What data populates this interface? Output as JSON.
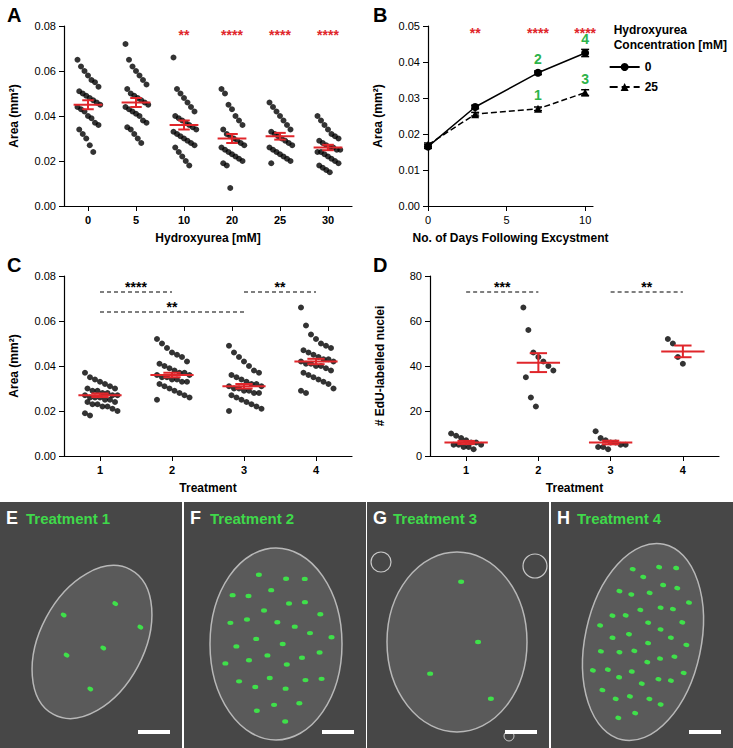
{
  "chart_data": [
    {
      "title": "A",
      "type": "dot_plot",
      "categories": [
        "0",
        "5",
        "10",
        "20",
        "25",
        "30"
      ],
      "values": [
        [
          0.065,
          0.062,
          0.06,
          0.058,
          0.056,
          0.055,
          0.053,
          0.051,
          0.05,
          0.049,
          0.048,
          0.047,
          0.046,
          0.045,
          0.044,
          0.043,
          0.042,
          0.04,
          0.039,
          0.037,
          0.036,
          0.034,
          0.032,
          0.03,
          0.027,
          0.024
        ],
        [
          0.072,
          0.065,
          0.062,
          0.06,
          0.058,
          0.056,
          0.054,
          0.052,
          0.05,
          0.049,
          0.048,
          0.047,
          0.046,
          0.045,
          0.044,
          0.043,
          0.042,
          0.041,
          0.04,
          0.038,
          0.037,
          0.035,
          0.034,
          0.032,
          0.03,
          0.028
        ],
        [
          0.066,
          0.052,
          0.05,
          0.048,
          0.046,
          0.044,
          0.042,
          0.04,
          0.039,
          0.038,
          0.037,
          0.036,
          0.035,
          0.034,
          0.033,
          0.032,
          0.031,
          0.03,
          0.029,
          0.028,
          0.027,
          0.026,
          0.024,
          0.022,
          0.02,
          0.018
        ],
        [
          0.052,
          0.05,
          0.045,
          0.043,
          0.04,
          0.038,
          0.036,
          0.034,
          0.032,
          0.031,
          0.03,
          0.029,
          0.028,
          0.027,
          0.026,
          0.025,
          0.024,
          0.023,
          0.022,
          0.021,
          0.02,
          0.019,
          0.018,
          0.008
        ],
        [
          0.046,
          0.044,
          0.042,
          0.04,
          0.038,
          0.036,
          0.034,
          0.033,
          0.032,
          0.031,
          0.03,
          0.029,
          0.028,
          0.027,
          0.026,
          0.025,
          0.024,
          0.023,
          0.022,
          0.021,
          0.02,
          0.019
        ],
        [
          0.04,
          0.038,
          0.036,
          0.034,
          0.032,
          0.031,
          0.03,
          0.029,
          0.028,
          0.027,
          0.026,
          0.026,
          0.025,
          0.025,
          0.024,
          0.024,
          0.023,
          0.022,
          0.021,
          0.02,
          0.019,
          0.018,
          0.017,
          0.016,
          0.015
        ]
      ],
      "color": "#000000",
      "summary": {
        "color": "#e0262b",
        "mean": [
          0.045,
          0.046,
          0.036,
          0.03,
          0.031,
          0.026
        ],
        "sem": [
          0.002,
          0.002,
          0.002,
          0.002,
          0.0015,
          0.0012
        ]
      },
      "x_label": "Hydroxyurea [mM]",
      "y_label": "Area (mm²)",
      "ylim": [
        0,
        0.08
      ],
      "yticks": [
        {
          "value": 0,
          "label": "0.00"
        },
        {
          "value": 0.02,
          "label": "0.02"
        },
        {
          "value": 0.04,
          "label": "0.04"
        },
        {
          "value": 0.06,
          "label": "0.06"
        },
        {
          "value": 0.08,
          "label": "0.08"
        }
      ],
      "annotations": [
        {
          "category": "10",
          "text": "**",
          "color": "#e0262b"
        },
        {
          "category": "20",
          "text": "****",
          "color": "#e0262b"
        },
        {
          "category": "25",
          "text": "****",
          "color": "#e0262b"
        },
        {
          "category": "30",
          "text": "****",
          "color": "#e0262b"
        }
      ]
    },
    {
      "title": "B",
      "type": "line",
      "x": [
        0,
        3,
        7,
        10
      ],
      "series": [
        {
          "name": "0",
          "color": "#000000",
          "marker": "circle",
          "line_style": "solid",
          "values": [
            0.0165,
            0.0275,
            0.037,
            0.0425
          ],
          "errors": [
            0.0005,
            0.0005,
            0.0005,
            0.001
          ]
        },
        {
          "name": "25",
          "color": "#000000",
          "marker": "triangle",
          "line_style": "dashed",
          "values": [
            0.017,
            0.0255,
            0.027,
            0.0315
          ],
          "errors": [
            0.0005,
            0.0005,
            0.0005,
            0.0008
          ]
        }
      ],
      "legend": "right",
      "legend_title": "Hydroxyurea\nConcentration [mM]",
      "x_label": "No. of Days Following Excystment",
      "y_label": "Area (mm²)",
      "xlim": [
        0,
        10.5
      ],
      "xticks": [
        0,
        5,
        10
      ],
      "ylim": [
        0,
        0.05
      ],
      "yticks": [
        {
          "value": 0,
          "label": "0.00"
        },
        {
          "value": 0.01,
          "label": "0.01"
        },
        {
          "value": 0.02,
          "label": "0.02"
        },
        {
          "value": 0.03,
          "label": "0.03"
        },
        {
          "value": 0.04,
          "label": "0.04"
        },
        {
          "value": 0.05,
          "label": "0.05"
        }
      ],
      "annotations": [
        {
          "x": 3,
          "text": "**",
          "color": "#e0262b"
        },
        {
          "x": 7,
          "text": "****",
          "color": "#e0262b"
        },
        {
          "x": 10,
          "text": "****",
          "color": "#e0262b"
        },
        {
          "x": 7,
          "series": "0",
          "text": "2",
          "color": "#2db34a",
          "position": "above"
        },
        {
          "x": 10,
          "series": "0",
          "text": "4",
          "color": "#2db34a",
          "position": "above"
        },
        {
          "x": 7,
          "series": "25",
          "text": "1",
          "color": "#2db34a",
          "position": "above"
        },
        {
          "x": 10,
          "series": "25",
          "text": "3",
          "color": "#2db34a",
          "position": "above"
        }
      ]
    },
    {
      "title": "C",
      "type": "dot_plot",
      "categories": [
        "1",
        "2",
        "3",
        "4"
      ],
      "values": [
        [
          0.037,
          0.035,
          0.034,
          0.033,
          0.032,
          0.031,
          0.03,
          0.03,
          0.029,
          0.029,
          0.028,
          0.028,
          0.027,
          0.027,
          0.027,
          0.026,
          0.026,
          0.026,
          0.025,
          0.025,
          0.024,
          0.024,
          0.023,
          0.023,
          0.022,
          0.022,
          0.021,
          0.02,
          0.019,
          0.018
        ],
        [
          0.052,
          0.05,
          0.048,
          0.046,
          0.045,
          0.044,
          0.042,
          0.041,
          0.04,
          0.039,
          0.038,
          0.037,
          0.037,
          0.036,
          0.036,
          0.035,
          0.035,
          0.034,
          0.034,
          0.033,
          0.033,
          0.032,
          0.031,
          0.03,
          0.029,
          0.028,
          0.027,
          0.026,
          0.025
        ],
        [
          0.049,
          0.046,
          0.044,
          0.042,
          0.04,
          0.038,
          0.037,
          0.036,
          0.035,
          0.034,
          0.033,
          0.032,
          0.032,
          0.031,
          0.031,
          0.03,
          0.03,
          0.029,
          0.029,
          0.028,
          0.028,
          0.027,
          0.026,
          0.025,
          0.024,
          0.023,
          0.022,
          0.021,
          0.02
        ],
        [
          0.066,
          0.058,
          0.054,
          0.052,
          0.05,
          0.049,
          0.048,
          0.047,
          0.046,
          0.045,
          0.044,
          0.043,
          0.043,
          0.042,
          0.042,
          0.041,
          0.041,
          0.04,
          0.04,
          0.039,
          0.038,
          0.037,
          0.036,
          0.035,
          0.034,
          0.033,
          0.032,
          0.03,
          0.029,
          0.028
        ]
      ],
      "color": "#000000",
      "summary": {
        "color": "#e0262b",
        "mean": [
          0.027,
          0.036,
          0.031,
          0.042
        ],
        "sem": [
          0.0008,
          0.001,
          0.001,
          0.0012
        ]
      },
      "x_label": "Treatment",
      "y_label": "Area (mm²)",
      "ylim": [
        0,
        0.08
      ],
      "yticks": [
        {
          "value": 0,
          "label": "0.00"
        },
        {
          "value": 0.02,
          "label": "0.02"
        },
        {
          "value": 0.04,
          "label": "0.04"
        },
        {
          "value": 0.06,
          "label": "0.06"
        },
        {
          "value": 0.08,
          "label": "0.08"
        }
      ],
      "comparisons": [
        {
          "from": "1",
          "to": "2",
          "text": "****"
        },
        {
          "from": "1",
          "to": "3",
          "text": "**"
        },
        {
          "from": "3",
          "to": "4",
          "text": "**"
        }
      ]
    },
    {
      "title": "D",
      "type": "dot_plot",
      "categories": [
        "1",
        "2",
        "3",
        "4"
      ],
      "values": [
        [
          10,
          9,
          8,
          7,
          6,
          6,
          5,
          5,
          5,
          4,
          4,
          3
        ],
        [
          66,
          56,
          46,
          44,
          42,
          40,
          38,
          35,
          26,
          22
        ],
        [
          11,
          8,
          7,
          6,
          6,
          5,
          5,
          4,
          4,
          3
        ],
        [
          52,
          50,
          44,
          41
        ]
      ],
      "color": "#000000",
      "summary": {
        "color": "#e0262b",
        "mean": [
          6,
          41.5,
          6,
          46.5
        ],
        "sem": [
          0.7,
          4.2,
          0.8,
          2.6
        ]
      },
      "x_label": "Treatment",
      "y_label": "# EdU-labelled nuclei",
      "ylim": [
        0,
        80
      ],
      "yticks": [
        0,
        20,
        40,
        60,
        80
      ],
      "comparisons": [
        {
          "from": "1",
          "to": "2",
          "text": "***"
        },
        {
          "from": "3",
          "to": "4",
          "text": "**"
        }
      ]
    }
  ],
  "images": [
    {
      "panel": "E",
      "label": "Treatment 1"
    },
    {
      "panel": "F",
      "label": "Treatment 2"
    },
    {
      "panel": "G",
      "label": "Treatment 3"
    },
    {
      "panel": "H",
      "label": "Treatment 4"
    }
  ]
}
